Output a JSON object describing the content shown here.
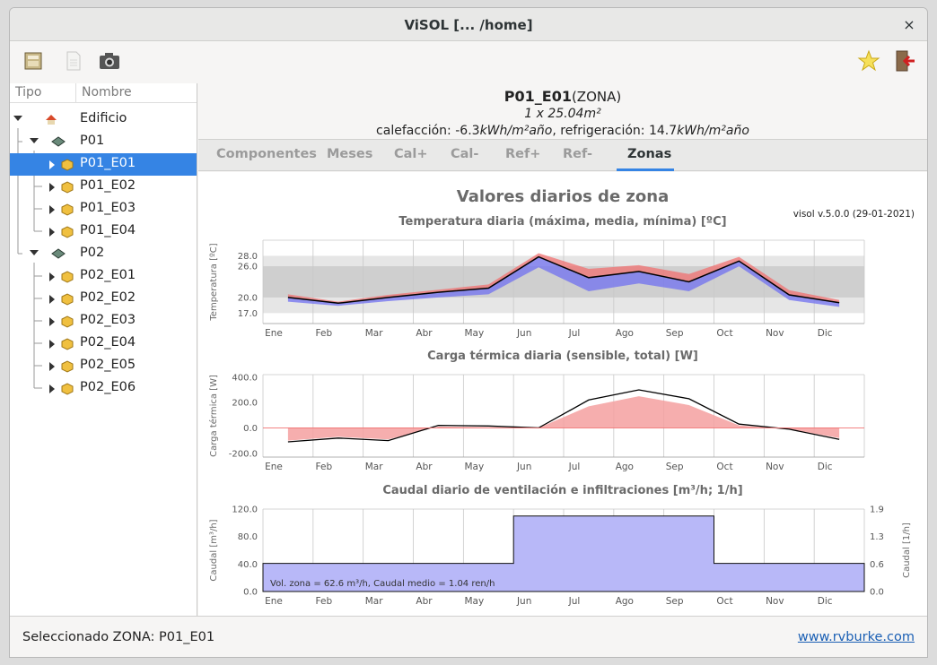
{
  "window": {
    "title": "ViSOL [... /home]",
    "close_label": "×"
  },
  "toolbar": {
    "icons": [
      "open-file-icon",
      "new-file-icon",
      "camera-icon",
      "star-icon",
      "exit-icon"
    ]
  },
  "tree": {
    "headers": {
      "tipo": "Tipo",
      "nombre": "Nombre"
    },
    "rows": [
      {
        "label": "Edificio",
        "level": 0,
        "expanded": true,
        "icon": "building-icon"
      },
      {
        "label": "P01",
        "level": 1,
        "expanded": true,
        "icon": "floor-icon"
      },
      {
        "label": "P01_E01",
        "level": 2,
        "selected": true,
        "icon": "zone-icon"
      },
      {
        "label": "P01_E02",
        "level": 2,
        "icon": "zone-icon"
      },
      {
        "label": "P01_E03",
        "level": 2,
        "icon": "zone-icon"
      },
      {
        "label": "P01_E04",
        "level": 2,
        "icon": "zone-icon"
      },
      {
        "label": "P02",
        "level": 1,
        "expanded": true,
        "icon": "floor-icon"
      },
      {
        "label": "P02_E01",
        "level": 2,
        "icon": "zone-icon"
      },
      {
        "label": "P02_E02",
        "level": 2,
        "icon": "zone-icon"
      },
      {
        "label": "P02_E03",
        "level": 2,
        "icon": "zone-icon"
      },
      {
        "label": "P02_E04",
        "level": 2,
        "icon": "zone-icon"
      },
      {
        "label": "P02_E05",
        "level": 2,
        "icon": "zone-icon"
      },
      {
        "label": "P02_E06",
        "level": 2,
        "icon": "zone-icon"
      }
    ]
  },
  "zone": {
    "name": "P01_E01",
    "type": "(ZONA)",
    "area": "1 x 25.04m²",
    "calefaccion_label": "calefacción:",
    "calefaccion_value": "-6.3",
    "refrigeracion_label": "refrigeración:",
    "refrigeracion_value": "14.7",
    "unit": "kWh/m²año"
  },
  "tabs": [
    "Componentes",
    "Meses",
    "Cal+",
    "Cal-",
    "Ref+",
    "Ref-",
    "Zonas"
  ],
  "active_tab": "Zonas",
  "plot": {
    "title": "Valores diarios de zona",
    "version": "visol v.5.0.0 (29-01-2021)"
  },
  "chart_data": [
    {
      "type": "area",
      "title": "Temperatura diaria (máxima, media, mínima) [ºC]",
      "ylabel": "Temperatura [ºC]",
      "yticks": [
        "28.0",
        "26.0",
        "20.0",
        "17.0"
      ],
      "ylim": [
        15,
        31
      ],
      "bands": [
        {
          "from": 17,
          "to": 28,
          "color": "#e6e6e6"
        },
        {
          "from": 20,
          "to": 26,
          "color": "#cfcfcf"
        }
      ],
      "categories": [
        "Ene",
        "Feb",
        "Mar",
        "Abr",
        "May",
        "Jun",
        "Jul",
        "Ago",
        "Sep",
        "Oct",
        "Nov",
        "Dic"
      ],
      "series": [
        {
          "name": "máxima",
          "color": "#f07070",
          "values": [
            20.6,
            19.2,
            20.5,
            21.5,
            22.5,
            28.5,
            25.5,
            26.2,
            24.5,
            27.8,
            21.4,
            19.5
          ]
        },
        {
          "name": "media",
          "color": "#000000",
          "values": [
            20.0,
            18.9,
            20.0,
            21.0,
            21.8,
            27.8,
            23.8,
            25.0,
            23.0,
            27.0,
            20.5,
            19.0
          ]
        },
        {
          "name": "mínima",
          "color": "#7070f0",
          "values": [
            19.2,
            18.4,
            19.3,
            20.0,
            20.6,
            25.8,
            21.2,
            22.7,
            21.2,
            26.0,
            19.5,
            18.2
          ]
        }
      ]
    },
    {
      "type": "area",
      "title": "Carga térmica diaria (sensible, total) [W]",
      "ylabel": "Carga térmica [W]",
      "yticks": [
        "400.0",
        "200.0",
        "0.0",
        "-200.0"
      ],
      "ylim": [
        -230,
        420
      ],
      "categories": [
        "Ene",
        "Feb",
        "Mar",
        "Abr",
        "May",
        "Jun",
        "Jul",
        "Ago",
        "Sep",
        "Oct",
        "Nov",
        "Dic"
      ],
      "series": [
        {
          "name": "sensible",
          "color": "#f4a0a0",
          "values": [
            -100,
            -70,
            -90,
            10,
            5,
            0,
            170,
            250,
            180,
            20,
            -10,
            -80
          ]
        },
        {
          "name": "total",
          "color": "#000000",
          "values": [
            -110,
            -80,
            -100,
            20,
            15,
            0,
            220,
            300,
            230,
            30,
            -10,
            -90
          ]
        }
      ]
    },
    {
      "type": "area",
      "title": "Caudal diario de ventilación e infiltraciones [m³/h; 1/h]",
      "ylabel": "Caudal [m³/h]",
      "ylabel_right": "Caudal [1/h]",
      "yticks": [
        "120.0",
        "80.0",
        "40.0",
        "0.0"
      ],
      "yticks_right": [
        "1.9",
        "1.3",
        "0.6",
        "0.0"
      ],
      "ylim": [
        0,
        120
      ],
      "categories": [
        "Ene",
        "Feb",
        "Mar",
        "Abr",
        "May",
        "Jun",
        "Jul",
        "Ago",
        "Sep",
        "Oct",
        "Nov",
        "Dic"
      ],
      "series": [
        {
          "name": "Caudal",
          "color": "#b8b8f8",
          "values": [
            41,
            41,
            41,
            41,
            41,
            110,
            110,
            110,
            110,
            41,
            41,
            41
          ]
        }
      ],
      "annotation": "Vol. zona = 62.6 m³/h, Caudal medio = 1.04 ren/h"
    }
  ],
  "status": {
    "text": "Seleccionado ZONA: P01_E01",
    "link": "www.rvburke.com"
  }
}
